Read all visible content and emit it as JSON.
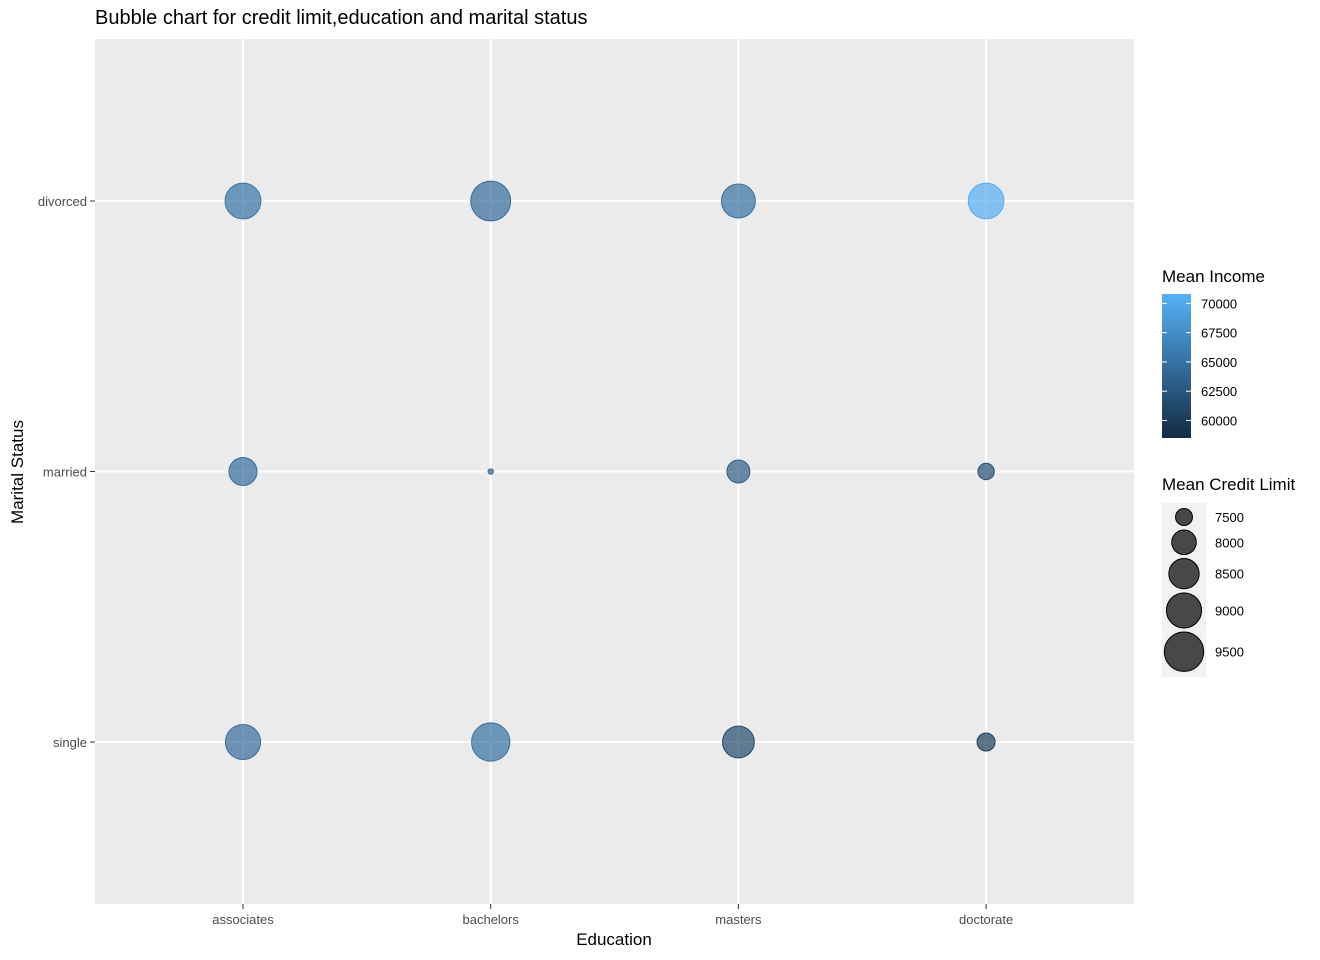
{
  "chart_data": {
    "type": "scatter",
    "title": "Bubble chart for credit limit,education and marital status",
    "xlabel": "Education",
    "ylabel": "Marital Status",
    "categories_x": [
      "associates",
      "bachelors",
      "masters",
      "doctorate"
    ],
    "categories_y": [
      "single",
      "married",
      "divorced"
    ],
    "points": [
      {
        "x": "associates",
        "y": "divorced",
        "mean_credit_limit": 9080,
        "mean_income": 65200
      },
      {
        "x": "bachelors",
        "y": "divorced",
        "mean_credit_limit": 9560,
        "mean_income": 64500
      },
      {
        "x": "masters",
        "y": "divorced",
        "mean_credit_limit": 8870,
        "mean_income": 65000
      },
      {
        "x": "doctorate",
        "y": "divorced",
        "mean_credit_limit": 9060,
        "mean_income": 70500
      },
      {
        "x": "associates",
        "y": "married",
        "mean_credit_limit": 8290,
        "mean_income": 64500
      },
      {
        "x": "bachelors",
        "y": "married",
        "mean_credit_limit": 7090,
        "mean_income": 64000
      },
      {
        "x": "masters",
        "y": "married",
        "mean_credit_limit": 7880,
        "mean_income": 63200
      },
      {
        "x": "doctorate",
        "y": "married",
        "mean_credit_limit": 7470,
        "mean_income": 61800
      },
      {
        "x": "associates",
        "y": "single",
        "mean_credit_limit": 9000,
        "mean_income": 64500
      },
      {
        "x": "bachelors",
        "y": "single",
        "mean_credit_limit": 9370,
        "mean_income": 65000
      },
      {
        "x": "masters",
        "y": "single",
        "mean_credit_limit": 8650,
        "mean_income": 61500
      },
      {
        "x": "doctorate",
        "y": "single",
        "mean_credit_limit": 7560,
        "mean_income": 60300
      }
    ],
    "color_legend": {
      "title": "Mean Income",
      "breaks": [
        "70000",
        "67500",
        "65000",
        "62500",
        "60000"
      ],
      "range": [
        58500,
        70800
      ],
      "low_color": "#132B43",
      "high_color": "#56B1F7"
    },
    "size_legend": {
      "title": "Mean Credit Limit",
      "breaks": [
        "7500",
        "8000",
        "8500",
        "9000",
        "9500"
      ],
      "range": [
        7070,
        9580
      ]
    },
    "grid": true,
    "legend_position": "right",
    "panel_background": "#EBEBEB",
    "grid_color": "#FFFFFF",
    "point_alpha": 0.7
  }
}
